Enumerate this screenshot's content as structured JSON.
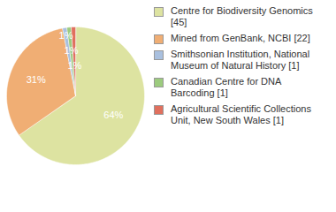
{
  "chart_data": {
    "type": "pie",
    "categories": [
      "Centre for Biodiversity Genomics [45]",
      "Mined from GenBank, NCBI [22]",
      "Smithsonian Institution, National Museum of Natural History [1]",
      "Canadian Centre for DNA Barcoding [1]",
      "Agricultural Scientific Collections Unit, New South Wales [1]"
    ],
    "values": [
      64,
      31,
      1,
      1,
      1
    ],
    "value_labels": [
      "64%",
      "31%",
      "1%",
      "1%",
      "1%"
    ],
    "colors": [
      "#dde3a1",
      "#f0ae74",
      "#a9c0df",
      "#9ccb7e",
      "#e0705e"
    ],
    "data_labels": true,
    "legend": "right"
  }
}
